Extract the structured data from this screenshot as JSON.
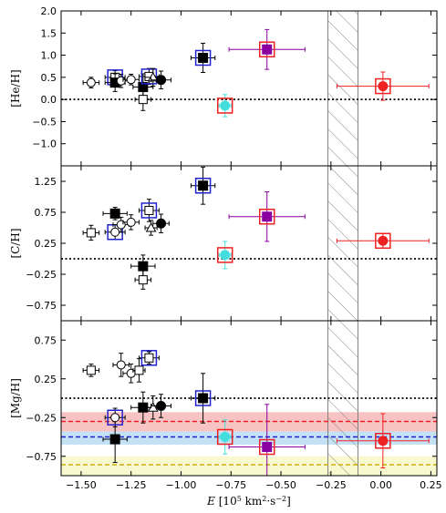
{
  "chart_data": {
    "type": "scatter",
    "xlabel": "E [10",
    "xlabel_sup1": "5",
    "xlabel_mid": " km",
    "xlabel_sup2": "2",
    "xlabel_mid2": "·s",
    "xlabel_sup3": "−2",
    "xlabel_end": "]",
    "xlim": [
      -1.6,
      0.28
    ],
    "xticks": [
      -1.5,
      -1.25,
      -1.0,
      -0.75,
      -0.5,
      -0.25,
      0.0,
      0.25
    ],
    "xticklabels": [
      "−1.50",
      "−1.25",
      "−1.00",
      "−0.75",
      "−0.50",
      "−0.25",
      "0.00",
      "0.25"
    ],
    "hatched_band_x": [
      -0.265,
      -0.115
    ],
    "colors": {
      "black": "#000000",
      "blue": "#2222cc",
      "red": "#ee2222",
      "purple": "#8a00a0",
      "cyan": "#44dddd",
      "band_red": "#f7b8b8",
      "band_blue": "#b9ddf5",
      "band_yellow": "#f8f8c8",
      "line_red": "#ee2222",
      "line_blue": "#2222cc",
      "line_yellow": "#c8a800"
    },
    "panels": [
      {
        "ylabel": "[He/H]",
        "ylim": [
          -1.5,
          2.0
        ],
        "yticks": [
          -1.0,
          -0.5,
          0.0,
          0.5,
          1.0,
          1.5,
          2.0
        ],
        "yticklabels": [
          "−1.0",
          "−0.5",
          "0.0",
          "0.5",
          "1.0",
          "1.5",
          "2.0"
        ],
        "ref_lines": [
          {
            "y": 0.0,
            "color": "#000000",
            "style": "dotted"
          }
        ],
        "bands": [],
        "points": [
          {
            "x": -1.45,
            "y": 0.38,
            "xerr": 0.04,
            "yerr": 0.12,
            "marker": "circle-open",
            "color": "#000000"
          },
          {
            "x": -1.33,
            "y": 0.5,
            "xerr": 0.05,
            "yerr": 0.15,
            "marker": "square-open",
            "color": "#000000",
            "box": "#2222cc"
          },
          {
            "x": -1.33,
            "y": 0.38,
            "xerr": 0.05,
            "yerr": 0.2,
            "marker": "square-filled",
            "color": "#000000"
          },
          {
            "x": -1.3,
            "y": 0.42,
            "xerr": 0.05,
            "yerr": 0.15,
            "marker": "circle-open",
            "color": "#000000"
          },
          {
            "x": -1.25,
            "y": 0.45,
            "xerr": 0.04,
            "yerr": 0.12,
            "marker": "circle-open",
            "color": "#000000"
          },
          {
            "x": -1.19,
            "y": 0.28,
            "xerr": 0.05,
            "yerr": 0.3,
            "marker": "square-filled",
            "color": "#000000"
          },
          {
            "x": -1.19,
            "y": 0.0,
            "xerr": 0.04,
            "yerr": 0.25,
            "marker": "square-open",
            "color": "#000000"
          },
          {
            "x": -1.16,
            "y": 0.52,
            "xerr": 0.05,
            "yerr": 0.18,
            "marker": "square-open",
            "color": "#000000",
            "box": "#2222cc"
          },
          {
            "x": -1.14,
            "y": 0.5,
            "xerr": 0.04,
            "yerr": 0.2,
            "marker": "triangle-open",
            "color": "#000000"
          },
          {
            "x": -1.1,
            "y": 0.44,
            "xerr": 0.05,
            "yerr": 0.2,
            "marker": "circle-filled",
            "color": "#000000"
          },
          {
            "x": -0.89,
            "y": 0.94,
            "xerr": 0.06,
            "yerr": 0.33,
            "marker": "square-filled",
            "color": "#000000",
            "box": "#2222cc"
          },
          {
            "x": -0.78,
            "y": -0.14,
            "xerr": 0.03,
            "yerr": 0.25,
            "marker": "circle-filled",
            "color": "#44dddd",
            "box": "#ee2222"
          },
          {
            "x": -0.57,
            "y": 1.13,
            "xerr": 0.19,
            "yerr": 0.45,
            "marker": "square-filled",
            "color": "#8a00a0",
            "box": "#ee2222"
          },
          {
            "x": 0.01,
            "y": 0.3,
            "xerr": 0.23,
            "yerr": 0.32,
            "marker": "circle-filled",
            "color": "#ee2222",
            "box": "#ee2222"
          }
        ]
      },
      {
        "ylabel": "[C/H]",
        "ylim": [
          -1.0,
          1.5
        ],
        "yticks": [
          -0.75,
          -0.25,
          0.25,
          0.75,
          1.25
        ],
        "yticklabels": [
          "−0.75",
          "−0.25",
          "0.25",
          "0.75",
          "1.25"
        ],
        "ref_lines": [
          {
            "y": 0.0,
            "color": "#000000",
            "style": "dotted"
          }
        ],
        "bands": [],
        "points": [
          {
            "x": -1.45,
            "y": 0.42,
            "xerr": 0.04,
            "yerr": 0.12,
            "marker": "square-open",
            "color": "#000000"
          },
          {
            "x": -1.33,
            "y": 0.73,
            "xerr": 0.06,
            "yerr": 0.1,
            "marker": "square-filled",
            "color": "#000000"
          },
          {
            "x": -1.33,
            "y": 0.43,
            "xerr": 0.05,
            "yerr": 0.12,
            "marker": "circle-open",
            "color": "#000000",
            "box": "#2222cc"
          },
          {
            "x": -1.3,
            "y": 0.55,
            "xerr": 0.04,
            "yerr": 0.12,
            "marker": "circle-open",
            "color": "#000000"
          },
          {
            "x": -1.25,
            "y": 0.59,
            "xerr": 0.04,
            "yerr": 0.12,
            "marker": "circle-open",
            "color": "#000000"
          },
          {
            "x": -1.19,
            "y": -0.12,
            "xerr": 0.06,
            "yerr": 0.18,
            "marker": "square-filled",
            "color": "#000000"
          },
          {
            "x": -1.19,
            "y": -0.34,
            "xerr": 0.04,
            "yerr": 0.15,
            "marker": "square-open",
            "color": "#000000"
          },
          {
            "x": -1.16,
            "y": 0.78,
            "xerr": 0.05,
            "yerr": 0.18,
            "marker": "square-open",
            "color": "#000000",
            "box": "#2222cc"
          },
          {
            "x": -1.15,
            "y": 0.5,
            "xerr": 0.03,
            "yerr": 0.12,
            "marker": "triangle-open",
            "color": "#000000"
          },
          {
            "x": -1.1,
            "y": 0.57,
            "xerr": 0.04,
            "yerr": 0.15,
            "marker": "circle-filled",
            "color": "#000000"
          },
          {
            "x": -0.89,
            "y": 1.18,
            "xerr": 0.06,
            "yerr": 0.3,
            "marker": "square-filled",
            "color": "#000000",
            "box": "#2222cc"
          },
          {
            "x": -0.78,
            "y": 0.06,
            "xerr": 0.03,
            "yerr": 0.22,
            "marker": "circle-filled",
            "color": "#44dddd",
            "box": "#ee2222"
          },
          {
            "x": -0.57,
            "y": 0.68,
            "xerr": 0.19,
            "yerr": 0.4,
            "marker": "square-filled",
            "color": "#8a00a0",
            "box": "#ee2222"
          },
          {
            "x": 0.01,
            "y": 0.29,
            "xerr": 0.23,
            "yerr": 0.12,
            "marker": "circle-filled",
            "color": "#ee2222",
            "box": "#ee2222"
          }
        ]
      },
      {
        "ylabel": "[Mg/H]",
        "ylim": [
          -1.0,
          1.0
        ],
        "yticks": [
          -0.75,
          -0.25,
          0.25,
          0.75
        ],
        "yticklabels": [
          "−0.75",
          "−0.25",
          "0.25",
          "0.75"
        ],
        "ref_lines": [
          {
            "y": 0.0,
            "color": "#000000",
            "style": "dotted"
          },
          {
            "y": -0.3,
            "color": "#ee2222",
            "style": "dashed"
          },
          {
            "y": -0.5,
            "color": "#2222cc",
            "style": "dashed"
          },
          {
            "y": -0.86,
            "color": "#c8a800",
            "style": "dashed"
          }
        ],
        "bands": [
          {
            "y0": -0.43,
            "y1": -0.18,
            "color": "#f7b8b8"
          },
          {
            "y0": -0.6,
            "y1": -0.43,
            "color": "#b9ddf5"
          },
          {
            "y0": -1.0,
            "y1": -0.75,
            "color": "#f8f8c8"
          }
        ],
        "points": [
          {
            "x": -1.45,
            "y": 0.36,
            "xerr": 0.04,
            "yerr": 0.08,
            "marker": "square-open",
            "color": "#000000"
          },
          {
            "x": -1.33,
            "y": -0.53,
            "xerr": 0.06,
            "yerr": 0.3,
            "marker": "square-filled",
            "color": "#000000"
          },
          {
            "x": -1.33,
            "y": -0.25,
            "xerr": 0.05,
            "yerr": 0.12,
            "marker": "circle-open",
            "color": "#000000",
            "box": "#2222cc"
          },
          {
            "x": -1.3,
            "y": 0.43,
            "xerr": 0.04,
            "yerr": 0.15,
            "marker": "circle-open",
            "color": "#000000"
          },
          {
            "x": -1.25,
            "y": 0.32,
            "xerr": 0.04,
            "yerr": 0.12,
            "marker": "circle-open",
            "color": "#000000"
          },
          {
            "x": -1.21,
            "y": 0.36,
            "xerr": 0.03,
            "yerr": 0.15,
            "marker": "square-open",
            "color": "#000000"
          },
          {
            "x": -1.19,
            "y": -0.12,
            "xerr": 0.06,
            "yerr": 0.2,
            "marker": "square-filled",
            "color": "#000000"
          },
          {
            "x": -1.16,
            "y": 0.52,
            "xerr": 0.05,
            "yerr": 0.08,
            "marker": "square-open",
            "color": "#000000",
            "box": "#2222cc"
          },
          {
            "x": -1.14,
            "y": -0.12,
            "xerr": 0.04,
            "yerr": 0.15,
            "marker": "triangle-open",
            "color": "#000000"
          },
          {
            "x": -1.1,
            "y": -0.1,
            "xerr": 0.05,
            "yerr": 0.15,
            "marker": "circle-filled",
            "color": "#000000"
          },
          {
            "x": -0.89,
            "y": 0.0,
            "xerr": 0.06,
            "yerr": 0.32,
            "marker": "square-filled",
            "color": "#000000",
            "box": "#2222cc"
          },
          {
            "x": -0.78,
            "y": -0.5,
            "xerr": 0.03,
            "yerr": 0.22,
            "marker": "circle-filled",
            "color": "#44dddd",
            "box": "#ee2222"
          },
          {
            "x": -0.57,
            "y": -0.63,
            "xerr": 0.19,
            "yerr": 0.55,
            "marker": "square-filled",
            "color": "#8a00a0",
            "box": "#ee2222"
          },
          {
            "x": 0.01,
            "y": -0.55,
            "xerr": 0.23,
            "yerr": 0.35,
            "marker": "circle-filled",
            "color": "#ee2222",
            "box": "#ee2222"
          }
        ]
      }
    ]
  }
}
